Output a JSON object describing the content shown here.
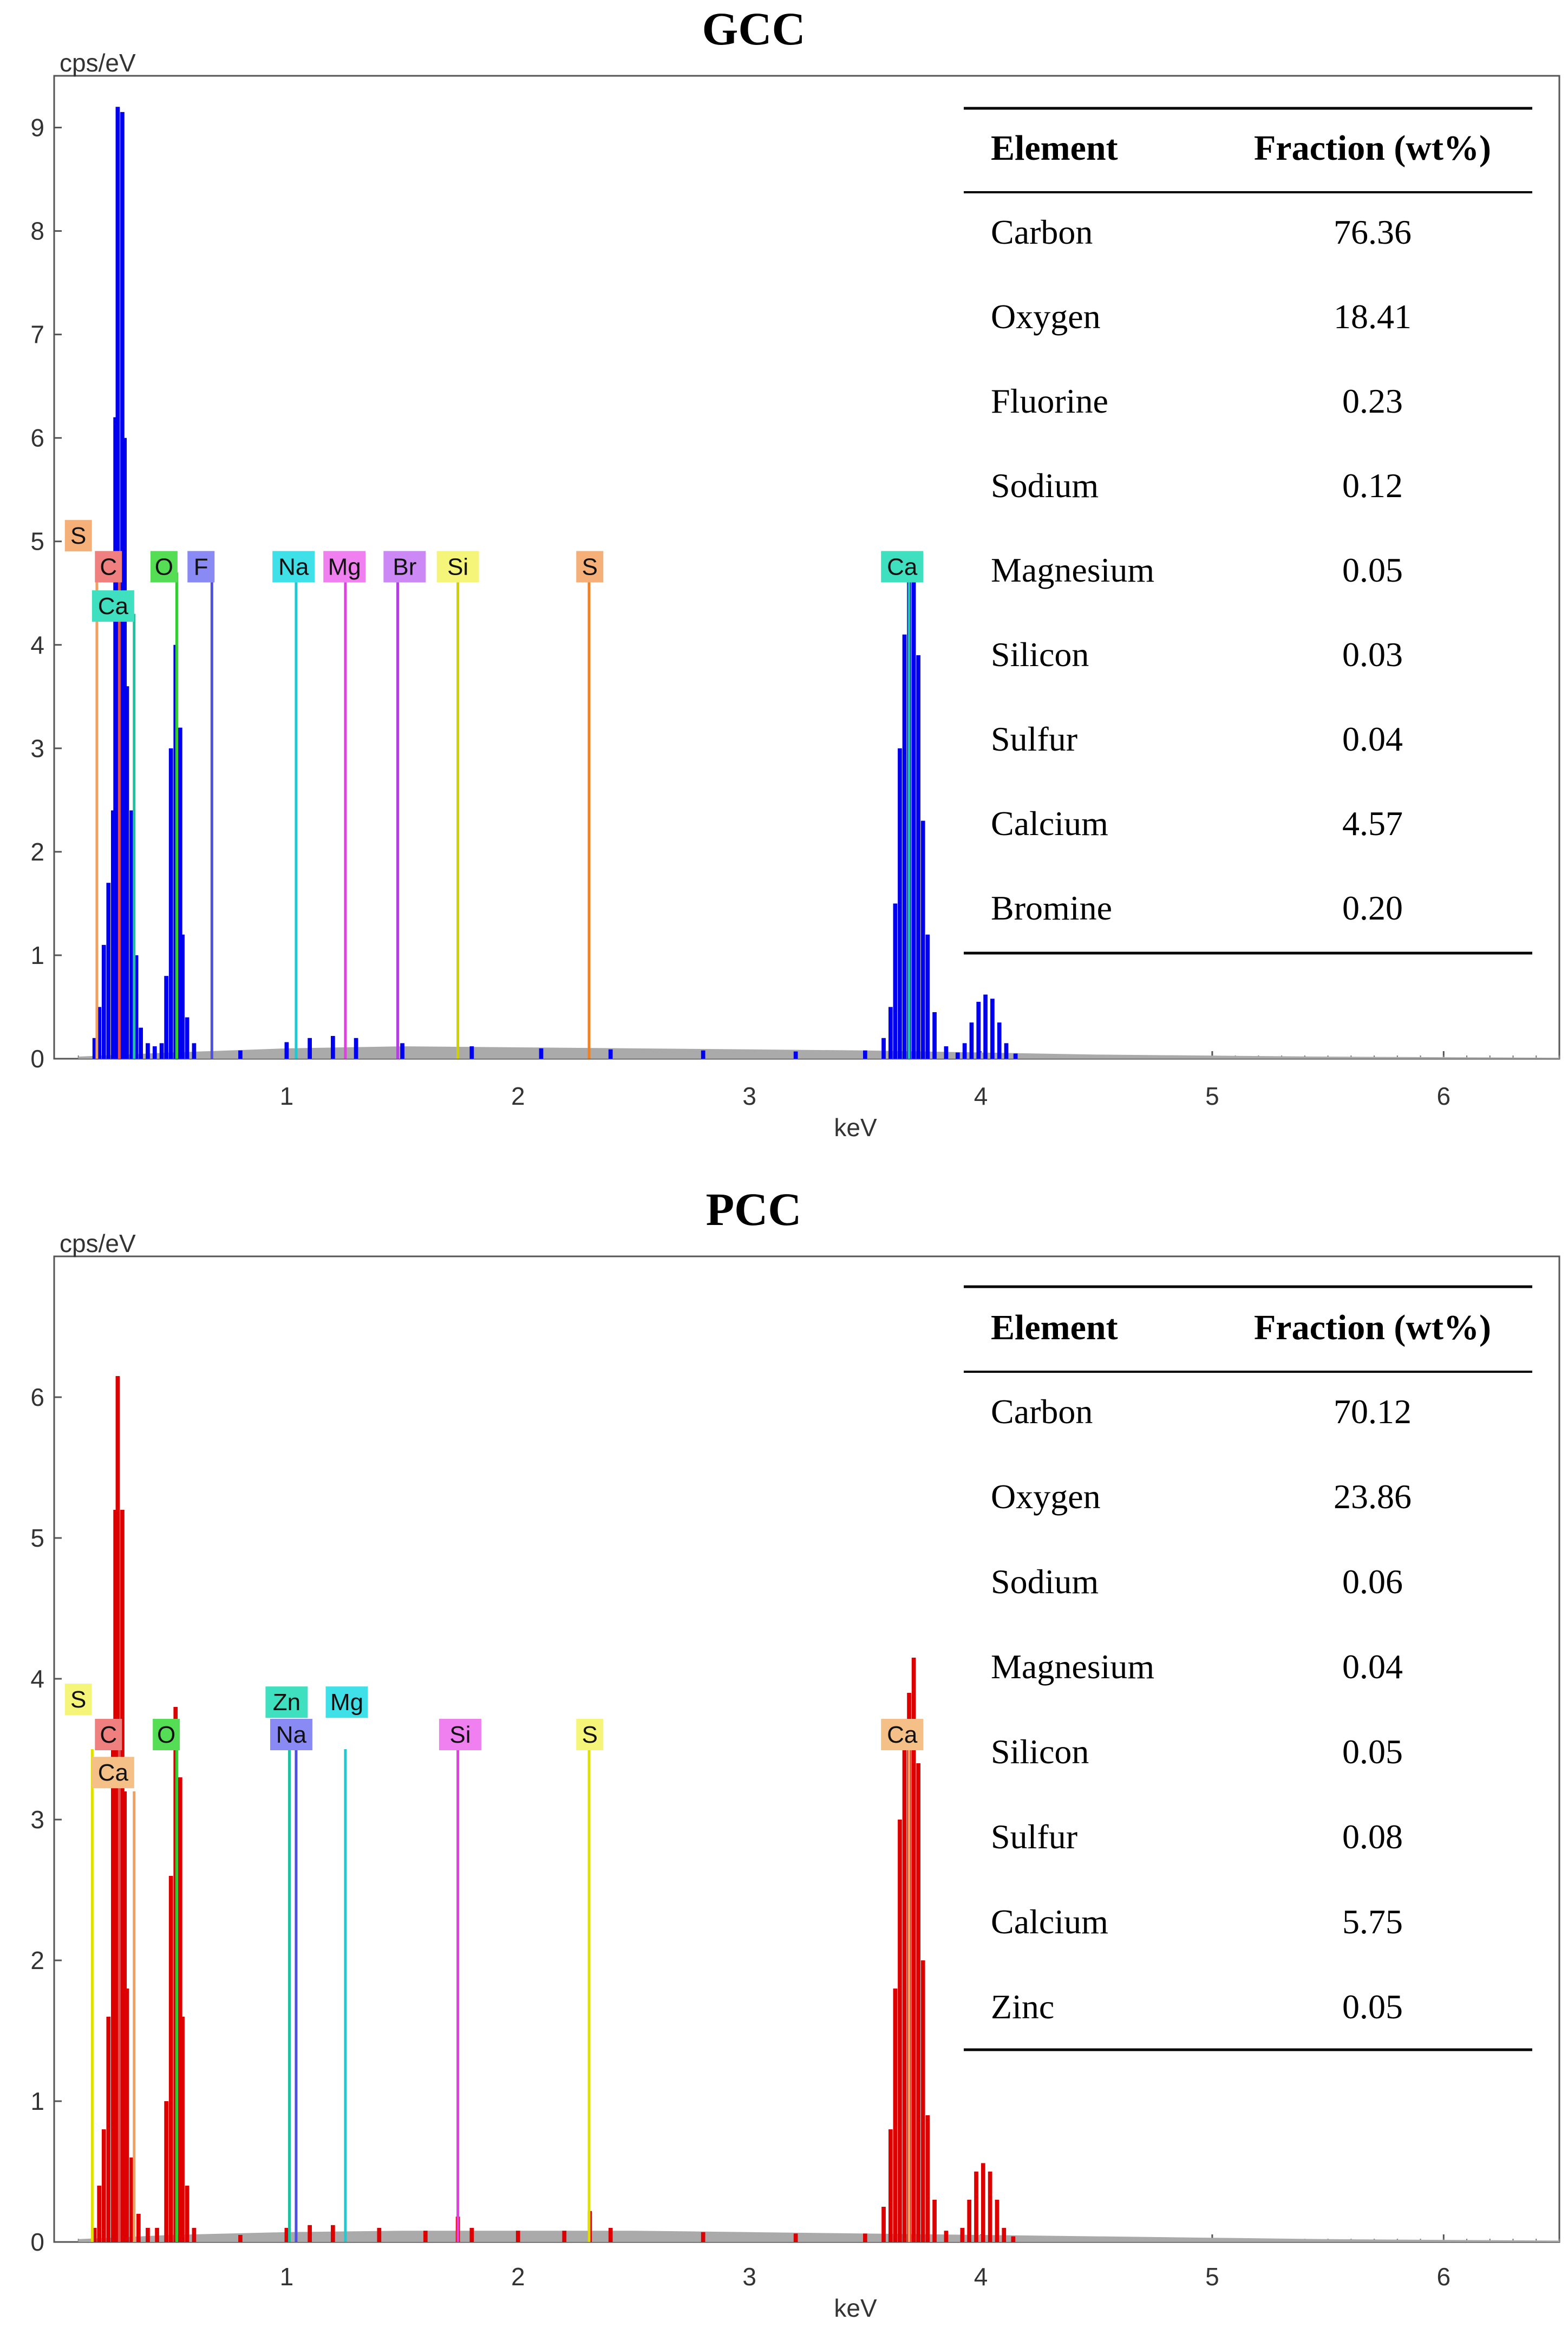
{
  "chart_data": [
    {
      "type": "bar",
      "title": "GCC",
      "ylabel": "cps/eV",
      "xlabel": "keV",
      "xlim": [
        0,
        6.5
      ],
      "ylim": [
        0,
        9.5
      ],
      "xticks": [
        "1",
        "2",
        "3",
        "4",
        "5",
        "6"
      ],
      "yticks": [
        "0",
        "1",
        "2",
        "3",
        "4",
        "5",
        "6",
        "7",
        "8",
        "9"
      ],
      "series_color": "#0000ee",
      "spectrum": [
        [
          0.17,
          0.2
        ],
        [
          0.19,
          0.5
        ],
        [
          0.21,
          1.1
        ],
        [
          0.23,
          1.7
        ],
        [
          0.25,
          2.4
        ],
        [
          0.26,
          6.2
        ],
        [
          0.27,
          9.2
        ],
        [
          0.29,
          9.15
        ],
        [
          0.3,
          6.0
        ],
        [
          0.31,
          3.6
        ],
        [
          0.33,
          2.4
        ],
        [
          0.35,
          1.0
        ],
        [
          0.37,
          0.3
        ],
        [
          0.4,
          0.15
        ],
        [
          0.43,
          0.12
        ],
        [
          0.46,
          0.15
        ],
        [
          0.48,
          0.8
        ],
        [
          0.5,
          3.0
        ],
        [
          0.52,
          4.0
        ],
        [
          0.54,
          3.2
        ],
        [
          0.55,
          1.2
        ],
        [
          0.57,
          0.4
        ],
        [
          0.6,
          0.15
        ],
        [
          0.8,
          0.08
        ],
        [
          1.0,
          0.16
        ],
        [
          1.1,
          0.2
        ],
        [
          1.2,
          0.22
        ],
        [
          1.3,
          0.2
        ],
        [
          1.5,
          0.15
        ],
        [
          1.8,
          0.12
        ],
        [
          2.1,
          0.1
        ],
        [
          2.4,
          0.09
        ],
        [
          2.8,
          0.08
        ],
        [
          3.2,
          0.07
        ],
        [
          3.5,
          0.08
        ],
        [
          3.58,
          0.2
        ],
        [
          3.61,
          0.5
        ],
        [
          3.63,
          1.5
        ],
        [
          3.65,
          3.0
        ],
        [
          3.67,
          4.1
        ],
        [
          3.69,
          4.75
        ],
        [
          3.71,
          4.78
        ],
        [
          3.73,
          3.9
        ],
        [
          3.75,
          2.3
        ],
        [
          3.77,
          1.2
        ],
        [
          3.8,
          0.45
        ],
        [
          3.85,
          0.12
        ],
        [
          3.9,
          0.06
        ],
        [
          3.93,
          0.15
        ],
        [
          3.96,
          0.35
        ],
        [
          3.99,
          0.55
        ],
        [
          4.02,
          0.62
        ],
        [
          4.05,
          0.58
        ],
        [
          4.08,
          0.35
        ],
        [
          4.11,
          0.15
        ],
        [
          4.15,
          0.05
        ]
      ],
      "background": [
        [
          0.1,
          0.02
        ],
        [
          0.5,
          0.06
        ],
        [
          1.0,
          0.1
        ],
        [
          1.5,
          0.12
        ],
        [
          2.0,
          0.11
        ],
        [
          2.5,
          0.1
        ],
        [
          3.0,
          0.09
        ],
        [
          3.5,
          0.08
        ],
        [
          4.0,
          0.06
        ],
        [
          4.5,
          0.04
        ],
        [
          5.0,
          0.03
        ],
        [
          5.5,
          0.02
        ],
        [
          6.0,
          0.015
        ],
        [
          6.5,
          0.01
        ]
      ],
      "element_lines": [
        {
          "e": "S",
          "x": 0.18,
          "h": 4.7,
          "c": "#f0a060"
        },
        {
          "e": "C",
          "x": 0.277,
          "h": 4.7,
          "c": "#e05050"
        },
        {
          "e": "Ca",
          "x": 0.341,
          "h": 4.3,
          "c": "#20c0a0"
        },
        {
          "e": "O",
          "x": 0.525,
          "h": 4.7,
          "c": "#30cc30"
        },
        {
          "e": "F",
          "x": 0.677,
          "h": 4.7,
          "c": "#5050e0"
        },
        {
          "e": "Na",
          "x": 1.041,
          "h": 4.7,
          "c": "#20c8d0"
        },
        {
          "e": "Mg",
          "x": 1.254,
          "h": 4.7,
          "c": "#e040e0"
        },
        {
          "e": "Br",
          "x": 1.48,
          "h": 4.7,
          "c": "#b040e0"
        },
        {
          "e": "Si",
          "x": 1.74,
          "h": 4.7,
          "c": "#d0d000"
        },
        {
          "e": "S",
          "x": 2.307,
          "h": 4.7,
          "c": "#f08020"
        },
        {
          "e": "Ca",
          "x": 3.69,
          "h": 4.7,
          "c": "#20c0a0"
        }
      ],
      "element_labels": [
        {
          "text": "S",
          "x": 0.1,
          "y": 5.05,
          "bg": "#f5b07a"
        },
        {
          "text": "C",
          "x": 0.23,
          "y": 4.75,
          "bg": "#f07f7f"
        },
        {
          "text": "Ca",
          "x": 0.25,
          "y": 4.37,
          "bg": "#3fe0c0"
        },
        {
          "text": "O",
          "x": 0.47,
          "y": 4.75,
          "bg": "#55dd55"
        },
        {
          "text": "F",
          "x": 0.63,
          "y": 4.75,
          "bg": "#8a8af5"
        },
        {
          "text": "Na",
          "x": 1.03,
          "y": 4.75,
          "bg": "#40e0e8"
        },
        {
          "text": "Mg",
          "x": 1.25,
          "y": 4.75,
          "bg": "#f07ff0"
        },
        {
          "text": "Br",
          "x": 1.51,
          "y": 4.75,
          "bg": "#cc88f5"
        },
        {
          "text": "Si",
          "x": 1.74,
          "y": 4.75,
          "bg": "#f5f57a"
        },
        {
          "text": "S",
          "x": 2.31,
          "y": 4.75,
          "bg": "#f5b07a"
        },
        {
          "text": "Ca",
          "x": 3.66,
          "y": 4.75,
          "bg": "#3fe0c0"
        }
      ],
      "table": {
        "headers": [
          "Element",
          "Fraction (wt%)"
        ],
        "rows": [
          [
            "Carbon",
            "76.36"
          ],
          [
            "Oxygen",
            "18.41"
          ],
          [
            "Fluorine",
            "0.23"
          ],
          [
            "Sodium",
            "0.12"
          ],
          [
            "Magnesium",
            "0.05"
          ],
          [
            "Silicon",
            "0.03"
          ],
          [
            "Sulfur",
            "0.04"
          ],
          [
            "Calcium",
            "4.57"
          ],
          [
            "Bromine",
            "0.20"
          ]
        ]
      }
    },
    {
      "type": "bar",
      "title": "PCC",
      "ylabel": "cps/eV",
      "xlabel": "keV",
      "xlim": [
        0,
        6.5
      ],
      "ylim": [
        0,
        7.0
      ],
      "xticks": [
        "1",
        "2",
        "3",
        "4",
        "5",
        "6"
      ],
      "yticks": [
        "0",
        "1",
        "2",
        "3",
        "4",
        "5",
        "6"
      ],
      "series_color": "#dd0000",
      "spectrum": [
        [
          0.17,
          0.1
        ],
        [
          0.19,
          0.4
        ],
        [
          0.21,
          0.8
        ],
        [
          0.23,
          1.6
        ],
        [
          0.25,
          3.5
        ],
        [
          0.26,
          5.2
        ],
        [
          0.27,
          6.15
        ],
        [
          0.29,
          5.2
        ],
        [
          0.3,
          3.2
        ],
        [
          0.31,
          1.8
        ],
        [
          0.33,
          0.6
        ],
        [
          0.36,
          0.2
        ],
        [
          0.4,
          0.1
        ],
        [
          0.44,
          0.1
        ],
        [
          0.48,
          1.0
        ],
        [
          0.5,
          2.6
        ],
        [
          0.52,
          3.8
        ],
        [
          0.54,
          3.3
        ],
        [
          0.55,
          1.6
        ],
        [
          0.57,
          0.4
        ],
        [
          0.6,
          0.1
        ],
        [
          0.8,
          0.05
        ],
        [
          1.0,
          0.1
        ],
        [
          1.1,
          0.12
        ],
        [
          1.2,
          0.12
        ],
        [
          1.4,
          0.1
        ],
        [
          1.6,
          0.08
        ],
        [
          1.74,
          0.18
        ],
        [
          1.8,
          0.1
        ],
        [
          2.0,
          0.08
        ],
        [
          2.2,
          0.08
        ],
        [
          2.31,
          0.22
        ],
        [
          2.4,
          0.1
        ],
        [
          2.8,
          0.07
        ],
        [
          3.2,
          0.06
        ],
        [
          3.5,
          0.06
        ],
        [
          3.58,
          0.25
        ],
        [
          3.61,
          0.8
        ],
        [
          3.63,
          1.8
        ],
        [
          3.65,
          3.0
        ],
        [
          3.67,
          3.6
        ],
        [
          3.69,
          3.9
        ],
        [
          3.71,
          4.15
        ],
        [
          3.73,
          3.4
        ],
        [
          3.75,
          2.0
        ],
        [
          3.77,
          0.9
        ],
        [
          3.8,
          0.3
        ],
        [
          3.85,
          0.08
        ],
        [
          3.92,
          0.1
        ],
        [
          3.95,
          0.3
        ],
        [
          3.98,
          0.5
        ],
        [
          4.01,
          0.56
        ],
        [
          4.04,
          0.5
        ],
        [
          4.07,
          0.3
        ],
        [
          4.1,
          0.1
        ],
        [
          4.14,
          0.04
        ]
      ],
      "background": [
        [
          0.1,
          0.02
        ],
        [
          0.5,
          0.05
        ],
        [
          1.0,
          0.07
        ],
        [
          1.5,
          0.08
        ],
        [
          2.0,
          0.08
        ],
        [
          2.5,
          0.08
        ],
        [
          3.0,
          0.07
        ],
        [
          3.5,
          0.06
        ],
        [
          4.0,
          0.05
        ],
        [
          4.5,
          0.04
        ],
        [
          5.0,
          0.03
        ],
        [
          5.5,
          0.02
        ],
        [
          6.0,
          0.015
        ],
        [
          6.5,
          0.01
        ]
      ],
      "element_lines": [
        {
          "e": "S",
          "x": 0.16,
          "h": 3.5,
          "c": "#e0e000"
        },
        {
          "e": "C",
          "x": 0.277,
          "h": 3.5,
          "c": "#e05050"
        },
        {
          "e": "Ca",
          "x": 0.341,
          "h": 3.2,
          "c": "#f0a060"
        },
        {
          "e": "O",
          "x": 0.525,
          "h": 3.5,
          "c": "#30cc30"
        },
        {
          "e": "Zn",
          "x": 1.012,
          "h": 3.5,
          "c": "#20c0a0"
        },
        {
          "e": "Na",
          "x": 1.041,
          "h": 3.5,
          "c": "#5050e0"
        },
        {
          "e": "Mg",
          "x": 1.254,
          "h": 3.5,
          "c": "#20c8d0"
        },
        {
          "e": "Si",
          "x": 1.74,
          "h": 3.5,
          "c": "#e040e0"
        },
        {
          "e": "S",
          "x": 2.307,
          "h": 3.5,
          "c": "#e0e000"
        },
        {
          "e": "Ca",
          "x": 3.69,
          "h": 3.5,
          "c": "#f0a060"
        }
      ],
      "element_labels": [
        {
          "text": "S",
          "x": 0.1,
          "y": 3.85,
          "bg": "#f5f57a"
        },
        {
          "text": "C",
          "x": 0.23,
          "y": 3.6,
          "bg": "#f07f7f"
        },
        {
          "text": "Ca",
          "x": 0.25,
          "y": 3.33,
          "bg": "#f5c088"
        },
        {
          "text": "O",
          "x": 0.48,
          "y": 3.6,
          "bg": "#55dd55"
        },
        {
          "text": "Zn",
          "x": 1.0,
          "y": 3.83,
          "bg": "#3fe0c0"
        },
        {
          "text": "Mg",
          "x": 1.26,
          "y": 3.83,
          "bg": "#40e0e8"
        },
        {
          "text": "Na",
          "x": 1.02,
          "y": 3.6,
          "bg": "#8a8af5"
        },
        {
          "text": "Si",
          "x": 1.75,
          "y": 3.6,
          "bg": "#f07ff0"
        },
        {
          "text": "S",
          "x": 2.31,
          "y": 3.6,
          "bg": "#f5f57a"
        },
        {
          "text": "Ca",
          "x": 3.66,
          "y": 3.6,
          "bg": "#f5c088"
        }
      ],
      "table": {
        "headers": [
          "Element",
          "Fraction (wt%)"
        ],
        "rows": [
          [
            "Carbon",
            "70.12"
          ],
          [
            "Oxygen",
            "23.86"
          ],
          [
            "Sodium",
            "0.06"
          ],
          [
            "Magnesium",
            "0.04"
          ],
          [
            "Silicon",
            "0.05"
          ],
          [
            "Sulfur",
            "0.08"
          ],
          [
            "Calcium",
            "5.75"
          ],
          [
            "Zinc",
            "0.05"
          ]
        ]
      }
    }
  ]
}
